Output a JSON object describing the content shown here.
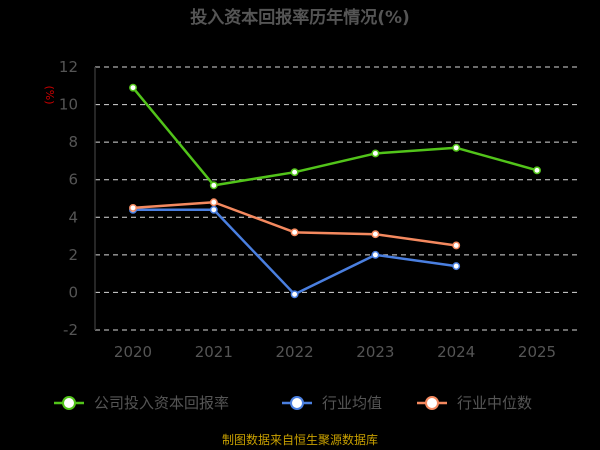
{
  "chart_data": {
    "type": "line",
    "title": "投入资本回报率历年情况(%)",
    "ylabel": "(%)",
    "x": [
      "2020",
      "2021",
      "2022",
      "2023",
      "2024",
      "2025"
    ],
    "ylim": [
      -2,
      12
    ],
    "yticks": [
      -2,
      0,
      2,
      4,
      6,
      8,
      10,
      12
    ],
    "grid": true,
    "legend_position": "bottom",
    "series": [
      {
        "name": "公司投入资本回报率",
        "color": "#52c41a",
        "values": [
          10.9,
          5.7,
          6.4,
          7.4,
          7.7,
          6.5
        ]
      },
      {
        "name": "行业均值",
        "color": "#4a7fe0",
        "values": [
          4.4,
          4.4,
          -0.1,
          2.0,
          1.4,
          null
        ]
      },
      {
        "name": "行业中位数",
        "color": "#f4895f",
        "values": [
          4.5,
          4.8,
          3.2,
          3.1,
          2.5,
          null
        ]
      }
    ],
    "source": "制图数据来自恒生聚源数据库"
  }
}
